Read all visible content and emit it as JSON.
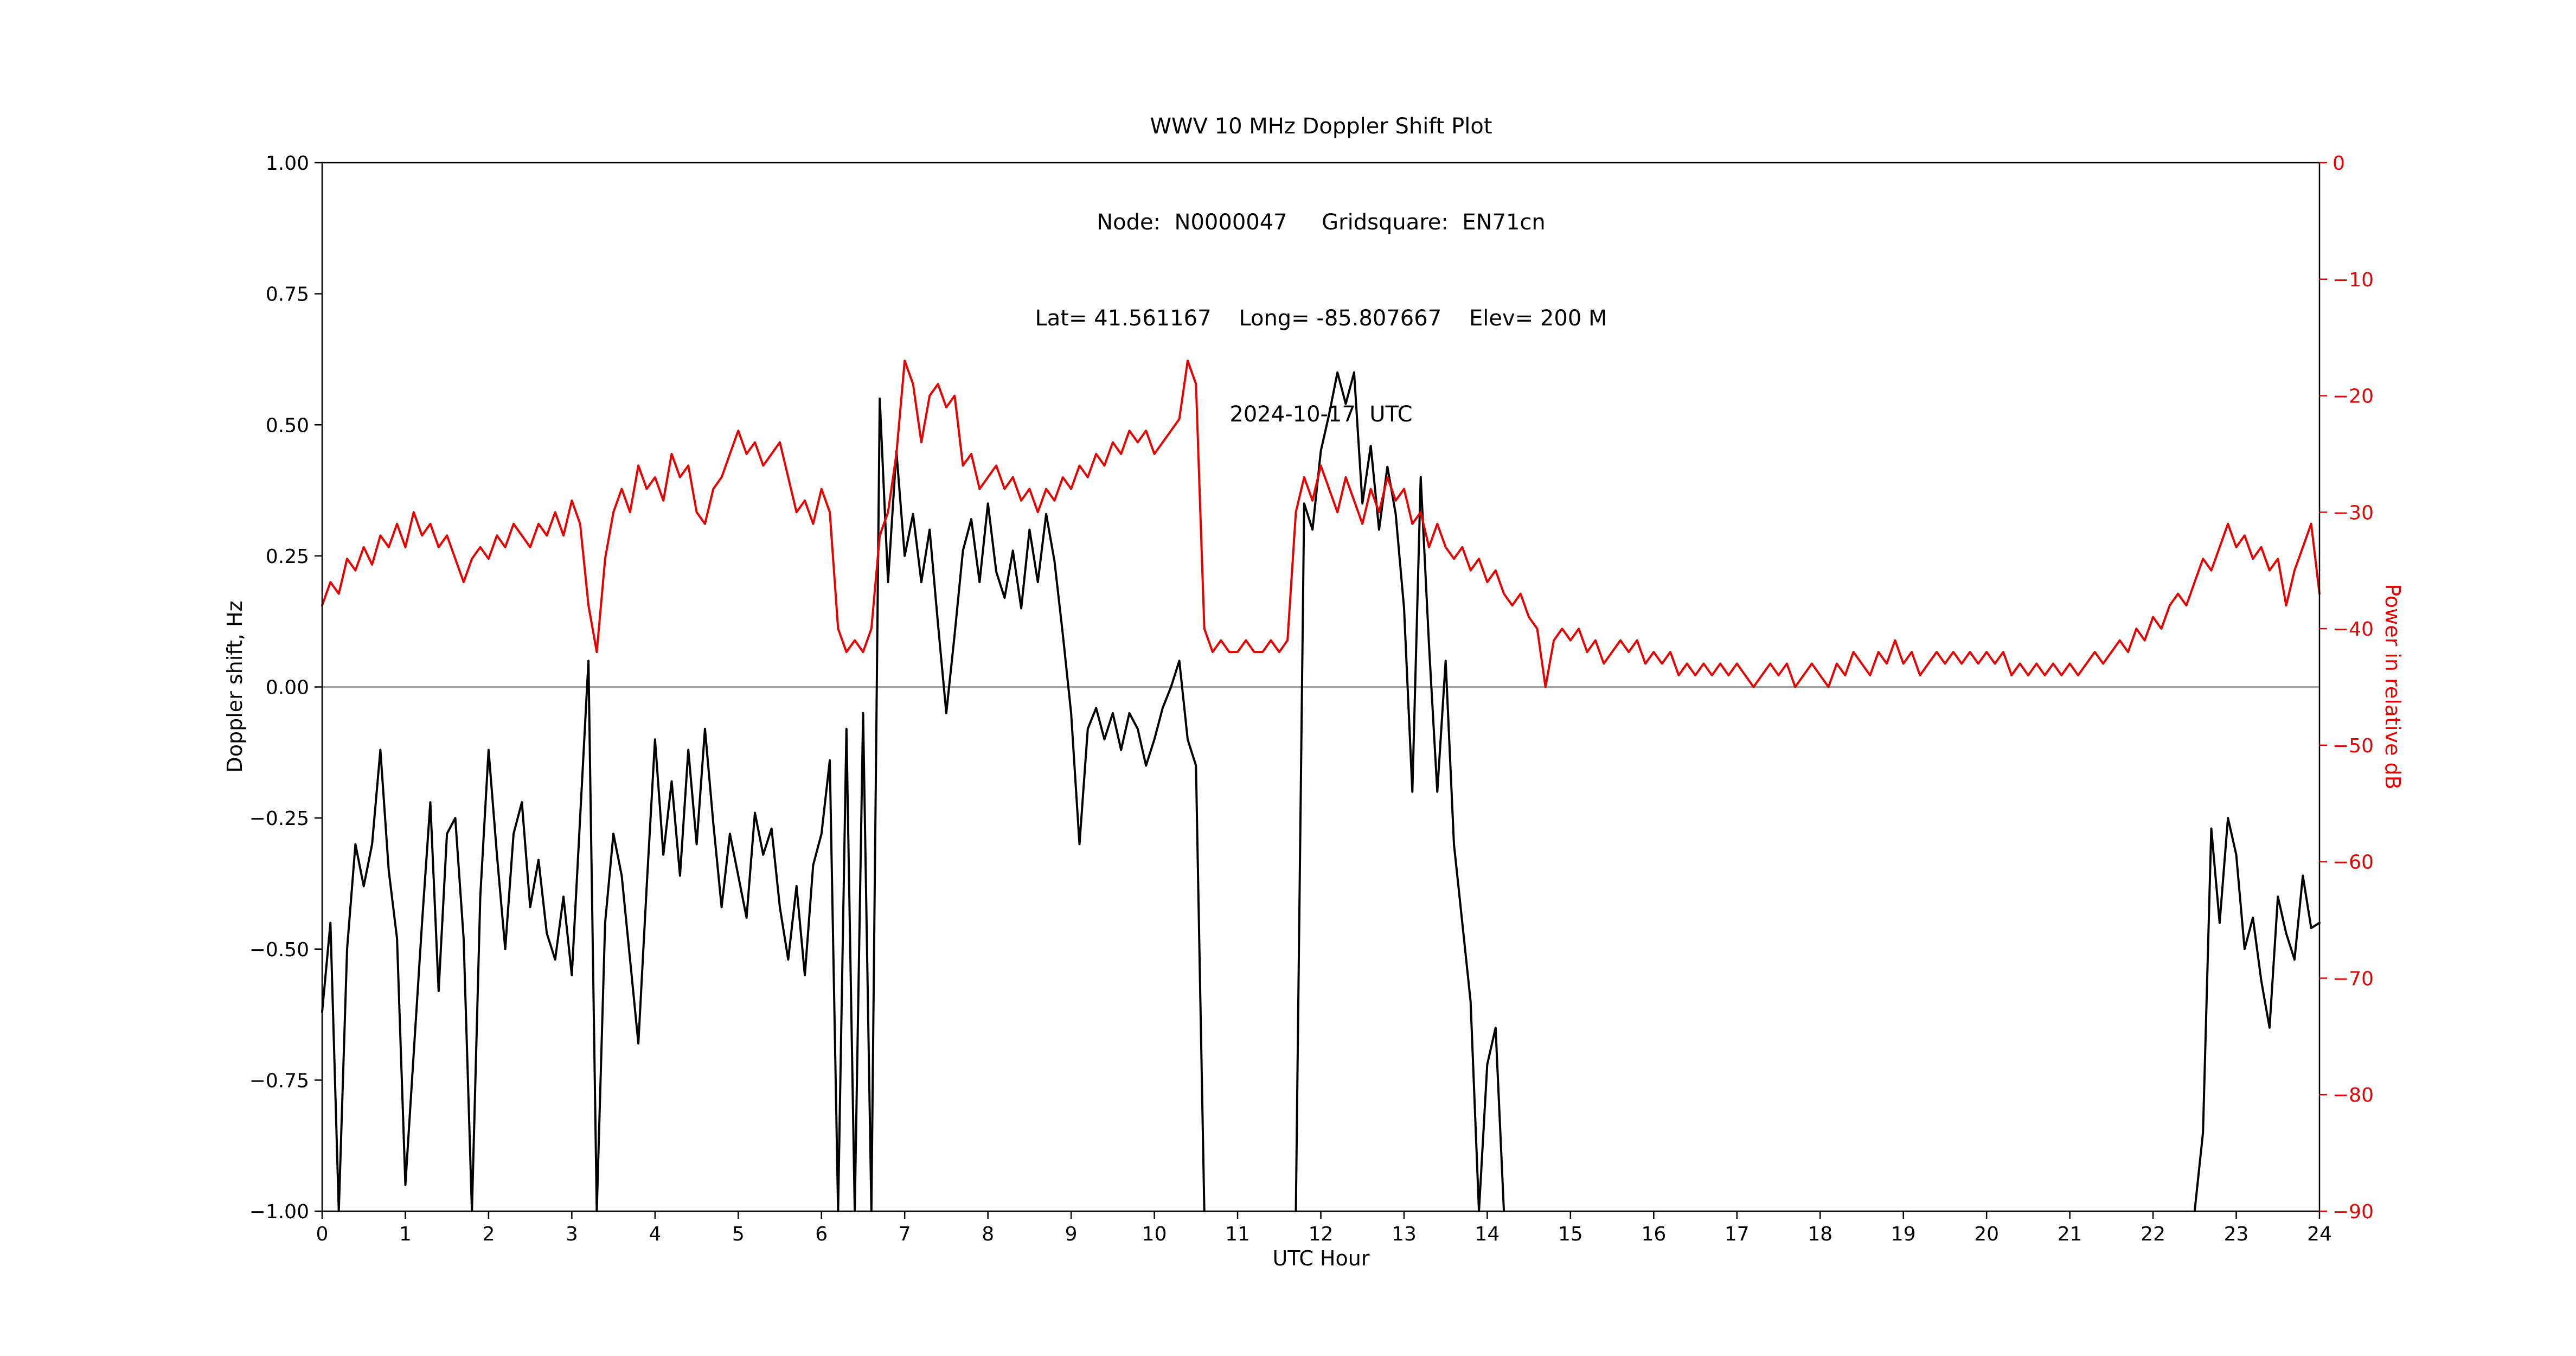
{
  "title": {
    "line1": "WWV 10 MHz Doppler Shift Plot",
    "line2": "Node:  N0000047     Gridsquare:  EN71cn",
    "line3": "Lat= 41.561167    Long= -85.807667    Elev= 200 M",
    "line4": "2024-10-17  UTC"
  },
  "axes": {
    "x_label": "UTC Hour",
    "y_left_label": "Doppler shift, Hz",
    "y_right_label": "Power in relative dB",
    "x_ticks": [
      "0",
      "1",
      "2",
      "3",
      "4",
      "5",
      "6",
      "7",
      "8",
      "9",
      "10",
      "11",
      "12",
      "13",
      "14",
      "15",
      "16",
      "17",
      "18",
      "19",
      "20",
      "21",
      "22",
      "23",
      "24"
    ],
    "y_left_ticks": [
      "1.00",
      "0.75",
      "0.50",
      "0.25",
      "0.00",
      "−0.25",
      "−0.50",
      "−0.75",
      "−1.00"
    ],
    "y_right_ticks": [
      "0",
      "−10",
      "−20",
      "−30",
      "−40",
      "−50",
      "−60",
      "−70",
      "−80",
      "−90"
    ]
  },
  "colors": {
    "doppler_line": "#000000",
    "power_line": "#e60000",
    "zero_line": "#888888",
    "spine": "#000000"
  },
  "chart_data": {
    "type": "line",
    "title": "WWV 10 MHz Doppler Shift Plot",
    "x_axis": {
      "label": "UTC Hour",
      "range": [
        0,
        24
      ],
      "tick_step": 1
    },
    "y_left_axis": {
      "label": "Doppler shift, Hz",
      "range": [
        -1.0,
        1.0
      ],
      "tick_step": 0.25
    },
    "y_right_axis": {
      "label": "Power in relative dB",
      "range": [
        -90,
        0
      ],
      "tick_step": 10
    },
    "grid": false,
    "legend": "none",
    "x_start": 0,
    "x_step": 0.1,
    "series": [
      {
        "name": "Doppler shift (Hz)",
        "axis": "left",
        "color": "#000000",
        "values": [
          -0.62,
          -0.45,
          -1.0,
          -0.5,
          -0.3,
          -0.38,
          -0.3,
          -0.12,
          -0.35,
          -0.48,
          -0.95,
          -0.7,
          -0.45,
          -0.22,
          -0.58,
          -0.28,
          -0.25,
          -0.48,
          -1.0,
          -0.4,
          -0.12,
          -0.32,
          -0.5,
          -0.28,
          -0.22,
          -0.42,
          -0.33,
          -0.47,
          -0.52,
          -0.4,
          -0.55,
          -0.25,
          0.05,
          -1.0,
          -0.45,
          -0.28,
          -0.36,
          -0.52,
          -0.68,
          -0.38,
          -0.1,
          -0.32,
          -0.18,
          -0.36,
          -0.12,
          -0.3,
          -0.08,
          -0.26,
          -0.42,
          -0.28,
          -0.36,
          -0.44,
          -0.24,
          -0.32,
          -0.27,
          -0.42,
          -0.52,
          -0.38,
          -0.55,
          -0.34,
          -0.28,
          -0.14,
          -1.0,
          -0.08,
          -1.0,
          -0.05,
          -1.0,
          0.55,
          0.2,
          0.45,
          0.25,
          0.33,
          0.2,
          0.3,
          0.12,
          -0.05,
          0.1,
          0.26,
          0.32,
          0.2,
          0.35,
          0.22,
          0.17,
          0.26,
          0.15,
          0.3,
          0.2,
          0.33,
          0.24,
          0.1,
          -0.05,
          -0.3,
          -0.08,
          -0.04,
          -0.1,
          -0.05,
          -0.12,
          -0.05,
          -0.08,
          -0.15,
          -0.1,
          -0.04,
          0.0,
          0.05,
          -0.1,
          -0.15,
          -1.0,
          null,
          null,
          null,
          null,
          null,
          null,
          null,
          null,
          null,
          null,
          -1.0,
          0.35,
          0.3,
          0.45,
          0.52,
          0.6,
          0.54,
          0.6,
          0.35,
          0.46,
          0.3,
          0.42,
          0.33,
          0.15,
          -0.2,
          0.4,
          0.08,
          -0.2,
          0.05,
          -0.3,
          -0.45,
          -0.6,
          -1.0,
          -0.72,
          -0.65,
          -1.0,
          null,
          null,
          null,
          null,
          null,
          null,
          null,
          null,
          null,
          null,
          null,
          null,
          null,
          null,
          null,
          null,
          null,
          null,
          null,
          null,
          null,
          null,
          null,
          null,
          null,
          null,
          null,
          null,
          null,
          null,
          null,
          null,
          null,
          null,
          null,
          null,
          null,
          null,
          null,
          null,
          null,
          null,
          null,
          null,
          null,
          null,
          null,
          null,
          null,
          null,
          null,
          null,
          null,
          null,
          null,
          null,
          null,
          null,
          null,
          null,
          null,
          null,
          null,
          null,
          null,
          null,
          null,
          null,
          null,
          null,
          null,
          null,
          null,
          null,
          null,
          null,
          null,
          null,
          null,
          null,
          null,
          null,
          -1.0,
          -0.85,
          -0.27,
          -0.45,
          -0.25,
          -0.32,
          -0.5,
          -0.44,
          -0.56,
          -0.65,
          -0.4,
          -0.47,
          -0.52,
          -0.36,
          -0.46,
          -0.45
        ]
      },
      {
        "name": "Power in relative dB",
        "axis": "right",
        "color": "#e60000",
        "values": [
          -38,
          -36,
          -37,
          -34,
          -35,
          -33,
          -34.5,
          -32,
          -33,
          -31,
          -33,
          -30,
          -32,
          -31,
          -33,
          -32,
          -34,
          -36,
          -34,
          -33,
          -34,
          -32,
          -33,
          -31,
          -32,
          -33,
          -31,
          -32,
          -30,
          -32,
          -29,
          -31,
          -38,
          -42,
          -34,
          -30,
          -28,
          -30,
          -26,
          -28,
          -27,
          -29,
          -25,
          -27,
          -26,
          -30,
          -31,
          -28,
          -27,
          -25,
          -23,
          -25,
          -24,
          -26,
          -25,
          -24,
          -27,
          -30,
          -29,
          -31,
          -28,
          -30,
          -40,
          -42,
          -41,
          -42,
          -40,
          -32,
          -30,
          -25,
          -17,
          -19,
          -24,
          -20,
          -19,
          -21,
          -20,
          -26,
          -25,
          -28,
          -27,
          -26,
          -28,
          -27,
          -29,
          -28,
          -30,
          -28,
          -29,
          -27,
          -28,
          -26,
          -27,
          -25,
          -26,
          -24,
          -25,
          -23,
          -24,
          -23,
          -25,
          -24,
          -23,
          -22,
          -17,
          -19,
          -40,
          -42,
          -41,
          -42,
          -42,
          -41,
          -42,
          -42,
          -41,
          -42,
          -41,
          -30,
          -27,
          -29,
          -26,
          -28,
          -30,
          -27,
          -29,
          -31,
          -28,
          -30,
          -27,
          -29,
          -28,
          -31,
          -30,
          -33,
          -31,
          -33,
          -34,
          -33,
          -35,
          -34,
          -36,
          -35,
          -37,
          -38,
          -37,
          -39,
          -40,
          -45,
          -41,
          -40,
          -41,
          -40,
          -42,
          -41,
          -43,
          -42,
          -41,
          -42,
          -41,
          -43,
          -42,
          -43,
          -42,
          -44,
          -43,
          -44,
          -43,
          -44,
          -43,
          -44,
          -43,
          -44,
          -45,
          -44,
          -43,
          -44,
          -43,
          -45,
          -44,
          -43,
          -44,
          -45,
          -43,
          -44,
          -42,
          -43,
          -44,
          -42,
          -43,
          -41,
          -43,
          -42,
          -44,
          -43,
          -42,
          -43,
          -42,
          -43,
          -42,
          -43,
          -42,
          -43,
          -42,
          -44,
          -43,
          -44,
          -43,
          -44,
          -43,
          -44,
          -43,
          -44,
          -43,
          -42,
          -43,
          -42,
          -41,
          -42,
          -40,
          -41,
          -39,
          -40,
          -38,
          -37,
          -38,
          -36,
          -34,
          -35,
          -33,
          -31,
          -33,
          -32,
          -34,
          -33,
          -35,
          -34,
          -38,
          -35,
          -33,
          -31,
          -37
        ]
      }
    ]
  }
}
